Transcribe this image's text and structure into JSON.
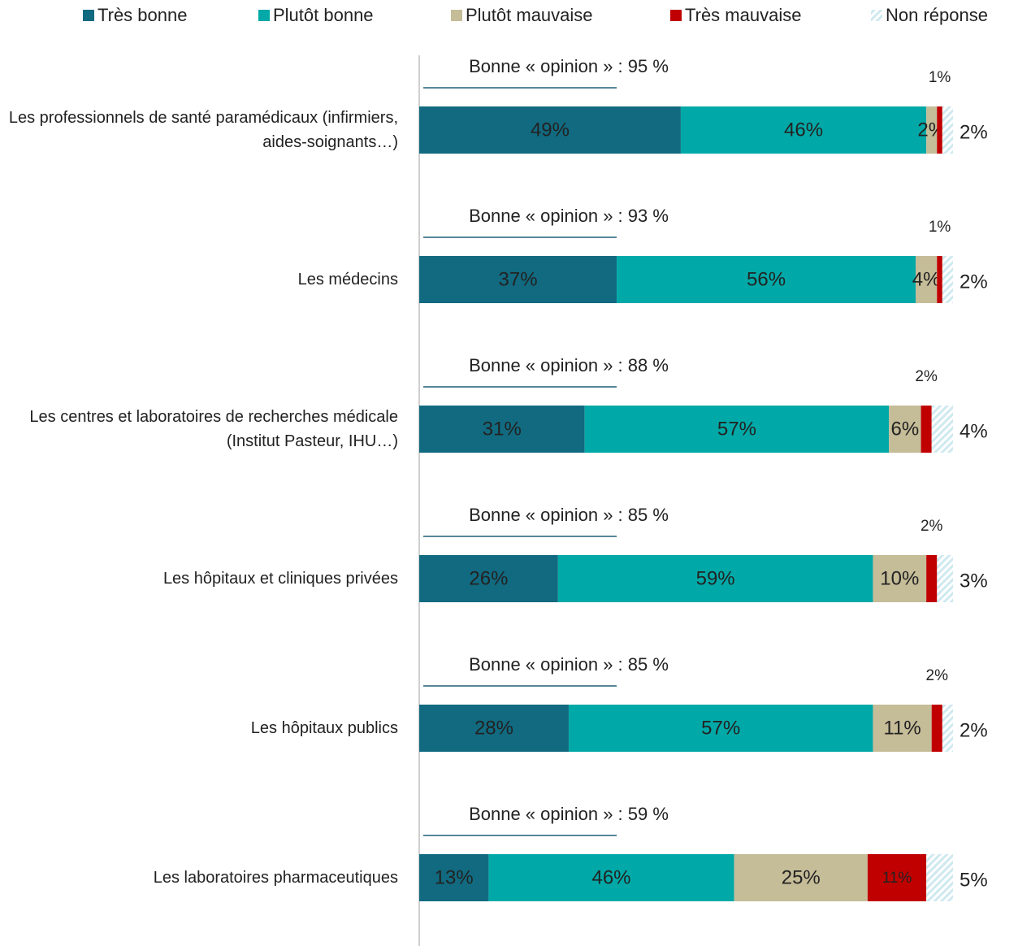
{
  "chart_data": {
    "type": "stacked-bar-horizontal",
    "categories": [
      "Les professionnels de santé paramédicaux (infirmiers, aides-soignants…)",
      "Les médecins",
      "Les centres et laboratoires de recherches médicale (Institut Pasteur, IHU…)",
      "Les hôpitaux et cliniques privées",
      "Les hôpitaux publics",
      "Les laboratoires pharmaceutiques"
    ],
    "series": [
      {
        "name": "Très bonne",
        "color": "#116a80",
        "values": [
          49,
          37,
          31,
          26,
          28,
          13
        ],
        "value_labels": [
          "49%",
          "37%",
          "31%",
          "26%",
          "28%",
          "13%"
        ]
      },
      {
        "name": "Plutôt bonne",
        "color": "#00a9a7",
        "values": [
          46,
          56,
          57,
          59,
          57,
          46
        ],
        "value_labels": [
          "46%",
          "56%",
          "57%",
          "59%",
          "57%",
          "46%"
        ]
      },
      {
        "name": "Plutôt mauvaise",
        "color": "#c5bc98",
        "values": [
          2,
          4,
          6,
          10,
          11,
          25
        ],
        "value_labels": [
          "2%",
          "4%",
          "6%",
          "10%",
          "11%",
          "25%"
        ]
      },
      {
        "name": "Très mauvaise",
        "color": "#c00000",
        "values": [
          1,
          1,
          2,
          2,
          2,
          11
        ],
        "value_labels": [
          "1%",
          "1%",
          "2%",
          "2%",
          "2%",
          "11%"
        ]
      },
      {
        "name": "Non réponse",
        "color": "#cfe9ef",
        "hatched": true,
        "values": [
          2,
          2,
          4,
          3,
          2,
          5
        ],
        "value_labels": [
          "2%",
          "2%",
          "4%",
          "3%",
          "2%",
          "5%"
        ]
      }
    ],
    "annotations": [
      "Bonne « opinion » : 95 %",
      "Bonne « opinion » : 93 %",
      "Bonne « opinion » : 88 %",
      "Bonne « opinion » : 85 %",
      "Bonne « opinion » : 85 %",
      "Bonne « opinion » : 59 %"
    ],
    "xlim": [
      0,
      100
    ],
    "legend": "top"
  }
}
